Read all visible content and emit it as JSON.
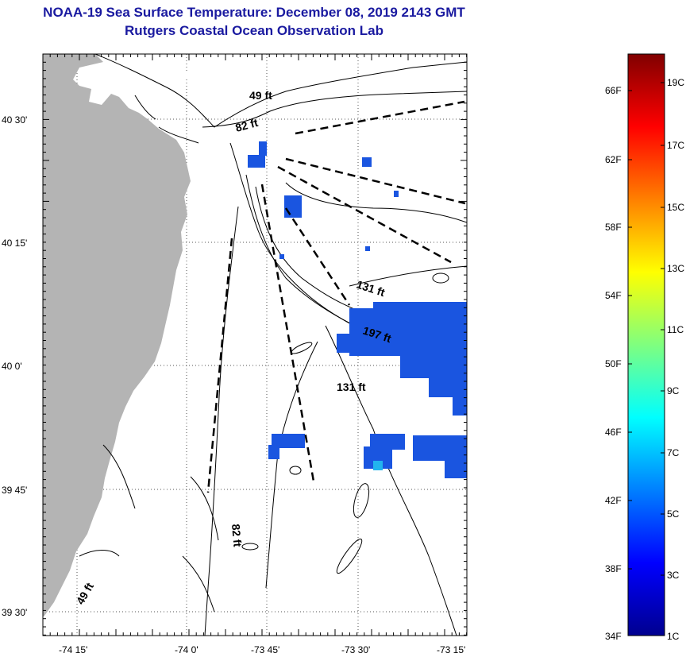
{
  "title": "NOAA-19 Sea Surface Temperature:  December 08, 2019 2143 GMT",
  "subtitle": "Rutgers Coastal Ocean Observation Lab",
  "map": {
    "y_ticks": [
      "40 30'",
      "40 15'",
      "40 0'",
      "39 45'",
      "39 30'"
    ],
    "x_ticks": [
      "-74 15'",
      "-74 0'",
      "-73 45'",
      "-73 30'",
      "-73 15'"
    ],
    "depth_labels": [
      "49 ft",
      "82 ft",
      "131 ft",
      "197 ft",
      "131 ft",
      "82 ft",
      "49 ft"
    ],
    "colors": {
      "land": "#b4b4b4",
      "cold_sst": "#1a55e0",
      "contour": "#000000"
    }
  },
  "colorbar": {
    "fahrenheit": [
      "66F",
      "62F",
      "58F",
      "54F",
      "50F",
      "46F",
      "42F",
      "38F",
      "34F"
    ],
    "celsius": [
      "19C",
      "17C",
      "15C",
      "13C",
      "11C",
      "9C",
      "7C",
      "5C",
      "3C",
      "1C"
    ]
  }
}
